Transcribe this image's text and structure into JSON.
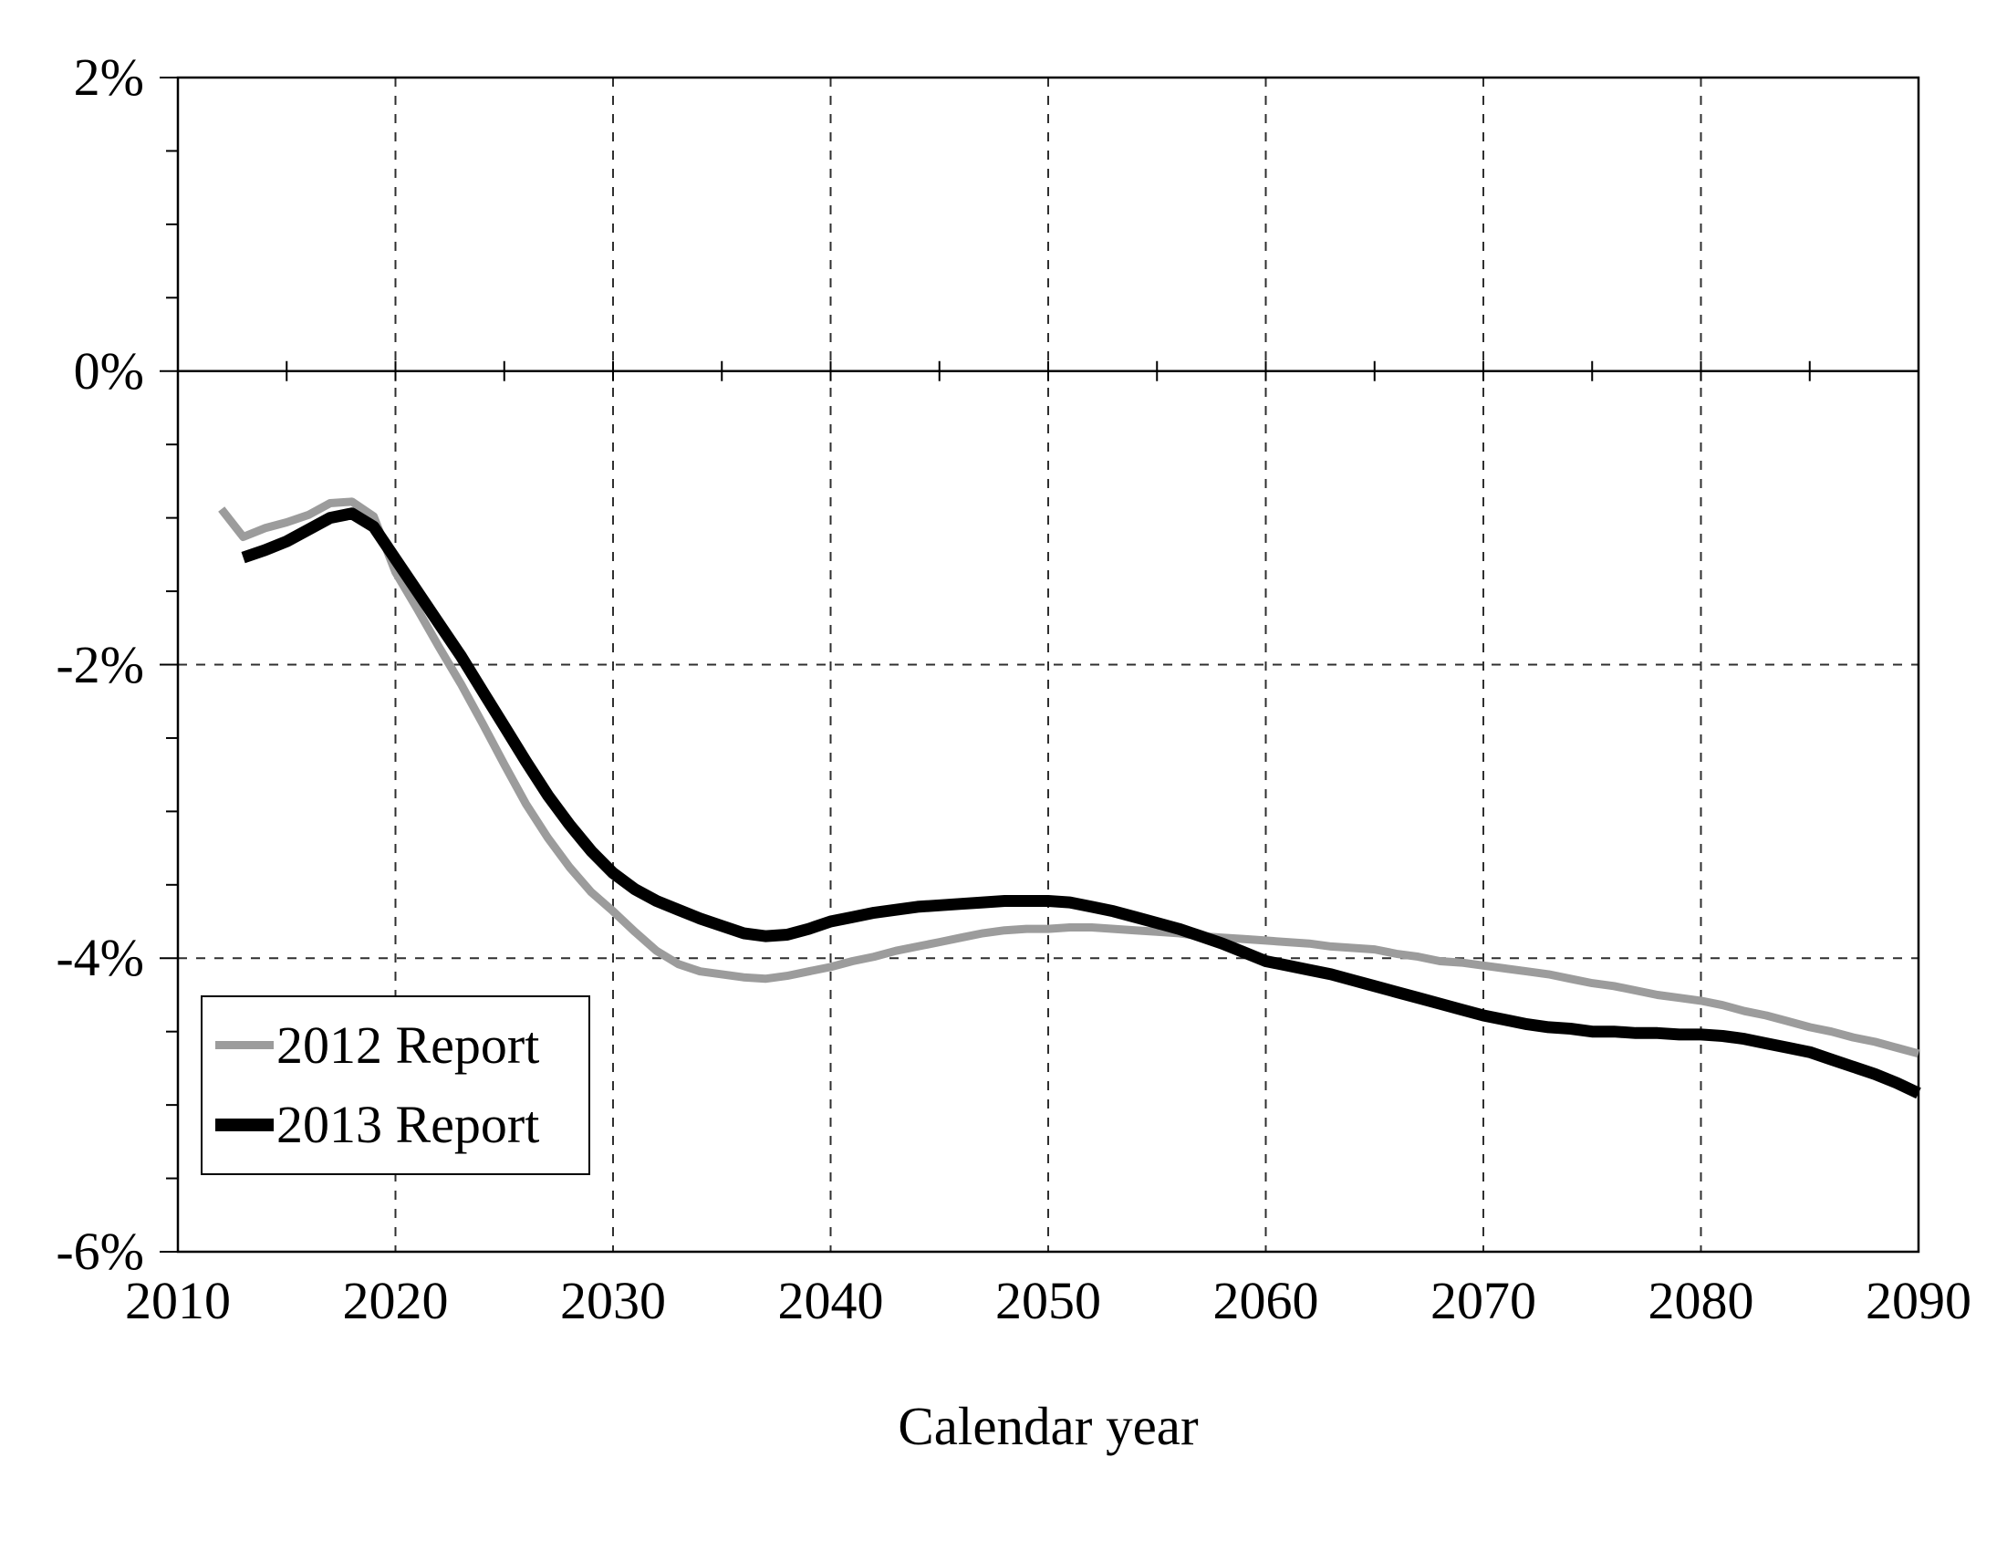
{
  "chart_data": {
    "type": "line",
    "title": "",
    "xlabel": "Calendar year",
    "ylabel": "",
    "xlim": [
      2010,
      2090
    ],
    "ylim": [
      -6,
      2
    ],
    "grid": {
      "vertical_dashed_years": [
        2020,
        2030,
        2040,
        2050,
        2060,
        2070,
        2080
      ],
      "horizontal_dashed_values": [
        -2,
        -4
      ],
      "zero_axis_solid": true,
      "x_minor_tick_years": [
        2015,
        2020,
        2025,
        2030,
        2035,
        2040,
        2045,
        2050,
        2055,
        2060,
        2065,
        2070,
        2075,
        2080,
        2085
      ],
      "y_minor_tick_step": 0.5
    },
    "x_ticks": [
      {
        "value": 2010,
        "label": "2010"
      },
      {
        "value": 2020,
        "label": "2020"
      },
      {
        "value": 2030,
        "label": "2030"
      },
      {
        "value": 2040,
        "label": "2040"
      },
      {
        "value": 2050,
        "label": "2050"
      },
      {
        "value": 2060,
        "label": "2060"
      },
      {
        "value": 2070,
        "label": "2070"
      },
      {
        "value": 2080,
        "label": "2080"
      },
      {
        "value": 2090,
        "label": "2090"
      }
    ],
    "y_ticks": [
      {
        "value": 2,
        "label": "2%"
      },
      {
        "value": 0,
        "label": "0%"
      },
      {
        "value": -2,
        "label": "-2%"
      },
      {
        "value": -4,
        "label": "-4%"
      },
      {
        "value": -6,
        "label": "-6%"
      }
    ],
    "legend": {
      "position": "inside-lower-left",
      "entries": [
        {
          "label": "2012 Report",
          "color": "#9c9c9c",
          "swatch_thickness": 9
        },
        {
          "label": "2013 Report",
          "color": "#000000",
          "swatch_thickness": 14
        }
      ]
    },
    "series": [
      {
        "name": "2012 Report",
        "color": "#9c9c9c",
        "line_width": 9,
        "points": [
          [
            2012,
            -0.94
          ],
          [
            2013,
            -1.13
          ],
          [
            2014,
            -1.07
          ],
          [
            2015,
            -1.03
          ],
          [
            2016,
            -0.98
          ],
          [
            2017,
            -0.9
          ],
          [
            2018,
            -0.89
          ],
          [
            2019,
            -0.99
          ],
          [
            2020,
            -1.37
          ],
          [
            2021,
            -1.62
          ],
          [
            2022,
            -1.88
          ],
          [
            2023,
            -2.13
          ],
          [
            2024,
            -2.4
          ],
          [
            2025,
            -2.68
          ],
          [
            2026,
            -2.95
          ],
          [
            2027,
            -3.18
          ],
          [
            2028,
            -3.38
          ],
          [
            2029,
            -3.55
          ],
          [
            2030,
            -3.68
          ],
          [
            2031,
            -3.82
          ],
          [
            2032,
            -3.95
          ],
          [
            2033,
            -4.04
          ],
          [
            2034,
            -4.09
          ],
          [
            2035,
            -4.11
          ],
          [
            2036,
            -4.13
          ],
          [
            2037,
            -4.14
          ],
          [
            2038,
            -4.12
          ],
          [
            2039,
            -4.09
          ],
          [
            2040,
            -4.06
          ],
          [
            2041,
            -4.02
          ],
          [
            2042,
            -3.99
          ],
          [
            2043,
            -3.95
          ],
          [
            2044,
            -3.92
          ],
          [
            2045,
            -3.89
          ],
          [
            2046,
            -3.86
          ],
          [
            2047,
            -3.83
          ],
          [
            2048,
            -3.81
          ],
          [
            2049,
            -3.8
          ],
          [
            2050,
            -3.8
          ],
          [
            2051,
            -3.79
          ],
          [
            2052,
            -3.79
          ],
          [
            2053,
            -3.8
          ],
          [
            2054,
            -3.81
          ],
          [
            2055,
            -3.82
          ],
          [
            2056,
            -3.83
          ],
          [
            2057,
            -3.85
          ],
          [
            2058,
            -3.86
          ],
          [
            2059,
            -3.87
          ],
          [
            2060,
            -3.88
          ],
          [
            2061,
            -3.89
          ],
          [
            2062,
            -3.9
          ],
          [
            2063,
            -3.92
          ],
          [
            2064,
            -3.93
          ],
          [
            2065,
            -3.94
          ],
          [
            2066,
            -3.97
          ],
          [
            2067,
            -3.99
          ],
          [
            2068,
            -4.02
          ],
          [
            2069,
            -4.03
          ],
          [
            2070,
            -4.05
          ],
          [
            2071,
            -4.07
          ],
          [
            2072,
            -4.09
          ],
          [
            2073,
            -4.11
          ],
          [
            2074,
            -4.14
          ],
          [
            2075,
            -4.17
          ],
          [
            2076,
            -4.19
          ],
          [
            2077,
            -4.22
          ],
          [
            2078,
            -4.25
          ],
          [
            2079,
            -4.27
          ],
          [
            2080,
            -4.29
          ],
          [
            2081,
            -4.32
          ],
          [
            2082,
            -4.36
          ],
          [
            2083,
            -4.39
          ],
          [
            2084,
            -4.43
          ],
          [
            2085,
            -4.47
          ],
          [
            2086,
            -4.5
          ],
          [
            2087,
            -4.54
          ],
          [
            2088,
            -4.57
          ],
          [
            2089,
            -4.61
          ],
          [
            2090,
            -4.65
          ]
        ]
      },
      {
        "name": "2013 Report",
        "color": "#000000",
        "line_width": 13,
        "points": [
          [
            2013,
            -1.27
          ],
          [
            2014,
            -1.22
          ],
          [
            2015,
            -1.16
          ],
          [
            2016,
            -1.08
          ],
          [
            2017,
            -1.0
          ],
          [
            2018,
            -0.97
          ],
          [
            2019,
            -1.06
          ],
          [
            2020,
            -1.28
          ],
          [
            2021,
            -1.5
          ],
          [
            2022,
            -1.72
          ],
          [
            2023,
            -1.94
          ],
          [
            2024,
            -2.18
          ],
          [
            2025,
            -2.42
          ],
          [
            2026,
            -2.66
          ],
          [
            2027,
            -2.89
          ],
          [
            2028,
            -3.09
          ],
          [
            2029,
            -3.27
          ],
          [
            2030,
            -3.42
          ],
          [
            2031,
            -3.53
          ],
          [
            2032,
            -3.61
          ],
          [
            2033,
            -3.67
          ],
          [
            2034,
            -3.73
          ],
          [
            2035,
            -3.78
          ],
          [
            2036,
            -3.83
          ],
          [
            2037,
            -3.85
          ],
          [
            2038,
            -3.84
          ],
          [
            2039,
            -3.8
          ],
          [
            2040,
            -3.75
          ],
          [
            2041,
            -3.72
          ],
          [
            2042,
            -3.69
          ],
          [
            2043,
            -3.67
          ],
          [
            2044,
            -3.65
          ],
          [
            2045,
            -3.64
          ],
          [
            2046,
            -3.63
          ],
          [
            2047,
            -3.62
          ],
          [
            2048,
            -3.61
          ],
          [
            2049,
            -3.61
          ],
          [
            2050,
            -3.61
          ],
          [
            2051,
            -3.62
          ],
          [
            2052,
            -3.65
          ],
          [
            2053,
            -3.68
          ],
          [
            2054,
            -3.72
          ],
          [
            2055,
            -3.76
          ],
          [
            2056,
            -3.8
          ],
          [
            2057,
            -3.85
          ],
          [
            2058,
            -3.9
          ],
          [
            2059,
            -3.96
          ],
          [
            2060,
            -4.02
          ],
          [
            2061,
            -4.05
          ],
          [
            2062,
            -4.08
          ],
          [
            2063,
            -4.11
          ],
          [
            2064,
            -4.15
          ],
          [
            2065,
            -4.19
          ],
          [
            2066,
            -4.23
          ],
          [
            2067,
            -4.27
          ],
          [
            2068,
            -4.31
          ],
          [
            2069,
            -4.35
          ],
          [
            2070,
            -4.39
          ],
          [
            2071,
            -4.42
          ],
          [
            2072,
            -4.45
          ],
          [
            2073,
            -4.47
          ],
          [
            2074,
            -4.48
          ],
          [
            2075,
            -4.5
          ],
          [
            2076,
            -4.5
          ],
          [
            2077,
            -4.51
          ],
          [
            2078,
            -4.51
          ],
          [
            2079,
            -4.52
          ],
          [
            2080,
            -4.52
          ],
          [
            2081,
            -4.53
          ],
          [
            2082,
            -4.55
          ],
          [
            2083,
            -4.58
          ],
          [
            2084,
            -4.61
          ],
          [
            2085,
            -4.64
          ],
          [
            2086,
            -4.69
          ],
          [
            2087,
            -4.74
          ],
          [
            2088,
            -4.79
          ],
          [
            2089,
            -4.85
          ],
          [
            2090,
            -4.92
          ]
        ]
      }
    ]
  }
}
